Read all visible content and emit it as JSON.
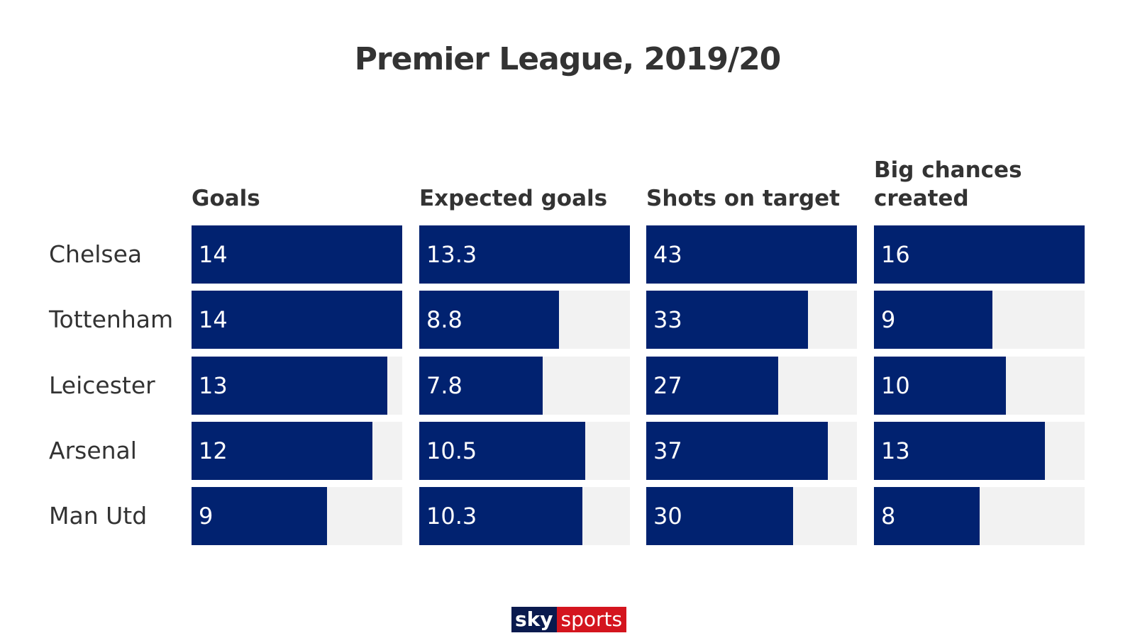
{
  "title": "Premier League, 2019/20",
  "logo": {
    "brand": "sky",
    "product": "sports"
  },
  "chart_data": {
    "type": "bar",
    "orientation": "horizontal",
    "categories": [
      "Chelsea",
      "Tottenham",
      "Leicester",
      "Arsenal",
      "Man Utd"
    ],
    "track_color": "#f2f2f2",
    "series": [
      {
        "name": "Goals",
        "color": "#012270",
        "values": [
          14,
          14,
          13,
          12,
          9
        ],
        "xlim": [
          0,
          14
        ]
      },
      {
        "name": "Expected goals",
        "color": "#012270",
        "values": [
          13.3,
          8.8,
          7.8,
          10.5,
          10.3
        ],
        "xlim": [
          0,
          13.3
        ]
      },
      {
        "name": "Shots on target",
        "color": "#012270",
        "values": [
          43,
          33,
          27,
          37,
          30
        ],
        "xlim": [
          0,
          43
        ]
      },
      {
        "name": "Big chances created",
        "color": "#012270",
        "values": [
          16,
          9,
          10,
          13,
          8
        ],
        "xlim": [
          0,
          16
        ]
      }
    ]
  }
}
